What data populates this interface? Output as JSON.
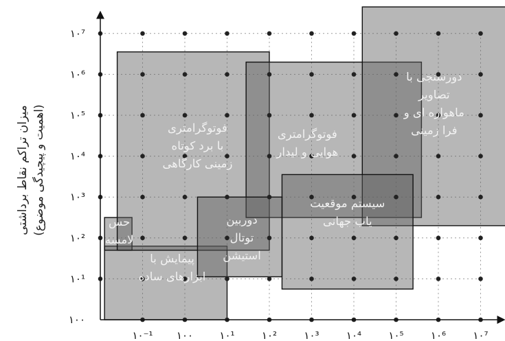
{
  "y_axis_label": {
    "line1": "میزان تراکم نقاط برداشتی",
    "line2": "(اهمیت و پیچیدگی موضوع)"
  },
  "x_ticks": [
    "۱۰⁻¹",
    "۱۰۰",
    "۱۰¹",
    "۱۰²",
    "۱۰³",
    "۱۰⁴",
    "۱۰⁵",
    "۱۰⁶",
    "۱۰⁷"
  ],
  "y_ticks": [
    "۱۰۰",
    "۱۰¹",
    "۱۰²",
    "۱۰³",
    "۱۰⁴",
    "۱۰⁵",
    "۱۰⁶",
    "۱۰⁷"
  ],
  "regions": [
    {
      "id": "simple-tools",
      "lines": [
        "پیمایش با",
        "ابزارهای ساده"
      ],
      "x": [
        -1.9,
        1.0
      ],
      "y": [
        0.0,
        1.8
      ]
    },
    {
      "id": "touch",
      "lines": [
        "حس",
        "لامسه"
      ],
      "x": [
        -1.9,
        -1.25
      ],
      "y": [
        1.7,
        2.5
      ]
    },
    {
      "id": "close-range-photogrammetry",
      "lines": [
        "فوتوگرامتری",
        "با برد کوتاه",
        "زمینی کارگاهی"
      ],
      "x": [
        -1.6,
        2.0
      ],
      "y": [
        1.7,
        6.55
      ]
    },
    {
      "id": "aerial-photogrammetry-lidar",
      "lines": [
        "فوتوگرامتری",
        "هوایی و لیدار"
      ],
      "x": [
        1.45,
        5.6
      ],
      "y": [
        2.5,
        6.3
      ]
    },
    {
      "id": "remote-sensing",
      "lines": [
        "دورسنجی با",
        "تصاویر",
        "ماهواره ای و",
        "فرا زمینی"
      ],
      "x": [
        4.2,
        8.0
      ],
      "y": [
        2.3,
        7.65
      ]
    },
    {
      "id": "gps",
      "lines": [
        "سیستم موقعیت",
        "یاب جهانی"
      ],
      "x": [
        2.3,
        5.4
      ],
      "y": [
        0.75,
        3.55
      ]
    },
    {
      "id": "total-station",
      "lines": [
        "دوربین",
        "توتال",
        "استیشن"
      ],
      "x": [
        0.3,
        2.3
      ],
      "y": [
        1.05,
        3.0
      ]
    }
  ]
}
